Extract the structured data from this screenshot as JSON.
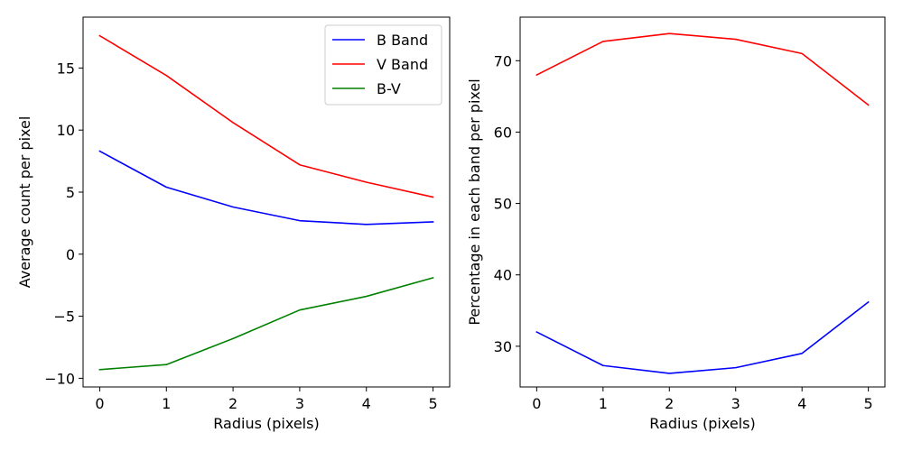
{
  "chart_data": [
    {
      "type": "line",
      "title": "",
      "xlabel": "Radius (pixels)",
      "ylabel": "Average count per pixel",
      "x": [
        0,
        1,
        2,
        3,
        4,
        5
      ],
      "xticks": [
        0,
        1,
        2,
        3,
        4,
        5
      ],
      "xlim": [
        -0.25,
        5.25
      ],
      "yticks": [
        -10,
        -5,
        0,
        5,
        10,
        15
      ],
      "ylim": [
        -10.7,
        19.1
      ],
      "grid": false,
      "legend_position": "top-right",
      "series": [
        {
          "name": "B Band",
          "color": "#0000ff",
          "values": [
            8.3,
            5.4,
            3.8,
            2.7,
            2.4,
            2.6
          ]
        },
        {
          "name": "V Band",
          "color": "#ff0000",
          "values": [
            17.6,
            14.4,
            10.6,
            7.2,
            5.8,
            4.6
          ]
        },
        {
          "name": "B-V",
          "color": "#008000",
          "values": [
            -9.3,
            -8.9,
            -6.8,
            -4.5,
            -3.4,
            -1.9
          ]
        }
      ]
    },
    {
      "type": "line",
      "title": "",
      "xlabel": "Radius (pixels)",
      "ylabel": "Percentage in each band per pixel",
      "x": [
        0,
        1,
        2,
        3,
        4,
        5
      ],
      "xticks": [
        0,
        1,
        2,
        3,
        4,
        5
      ],
      "xlim": [
        -0.25,
        5.25
      ],
      "yticks": [
        30,
        40,
        50,
        60,
        70
      ],
      "ylim": [
        24.3,
        76.1
      ],
      "grid": false,
      "series": [
        {
          "color": "#0000ff",
          "values": [
            32.0,
            27.3,
            26.2,
            27.0,
            29.0,
            36.2
          ]
        },
        {
          "color": "#ff0000",
          "values": [
            68.0,
            72.7,
            73.8,
            73.0,
            71.0,
            63.8
          ]
        }
      ]
    }
  ]
}
